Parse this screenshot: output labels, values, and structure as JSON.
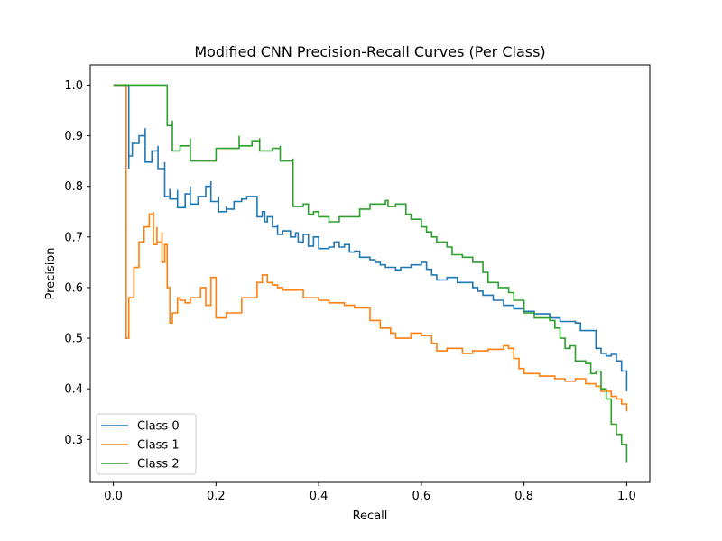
{
  "chart_data": {
    "type": "line",
    "title": "Modified CNN Precision-Recall Curves (Per Class)",
    "xlabel": "Recall",
    "ylabel": "Precision",
    "xlim": [
      -0.045,
      1.045
    ],
    "ylim": [
      0.215,
      1.04
    ],
    "xticks": [
      0.0,
      0.2,
      0.4,
      0.6,
      0.8,
      1.0
    ],
    "xtick_labels": [
      "0.0",
      "0.2",
      "0.4",
      "0.6",
      "0.8",
      "1.0"
    ],
    "yticks": [
      0.3,
      0.4,
      0.5,
      0.6,
      0.7,
      0.8,
      0.9,
      1.0
    ],
    "ytick_labels": [
      "0.3",
      "0.4",
      "0.5",
      "0.6",
      "0.7",
      "0.8",
      "0.9",
      "1.0"
    ],
    "grid": false,
    "legend_position": "bottom-left",
    "series": [
      {
        "name": "Class 0",
        "color": "#1f77b4",
        "x": [
          0.0,
          0.03,
          0.03,
          0.03,
          0.037,
          0.05,
          0.062,
          0.062,
          0.075,
          0.087,
          0.087,
          0.1,
          0.1,
          0.11,
          0.11,
          0.125,
          0.125,
          0.14,
          0.15,
          0.15,
          0.165,
          0.18,
          0.19,
          0.19,
          0.205,
          0.205,
          0.22,
          0.22,
          0.235,
          0.235,
          0.25,
          0.26,
          0.28,
          0.28,
          0.29,
          0.295,
          0.3,
          0.31,
          0.32,
          0.32,
          0.33,
          0.345,
          0.355,
          0.36,
          0.37,
          0.38,
          0.39,
          0.4,
          0.42,
          0.43,
          0.44,
          0.45,
          0.46,
          0.47,
          0.48,
          0.5,
          0.51,
          0.52,
          0.53,
          0.55,
          0.56,
          0.58,
          0.6,
          0.61,
          0.62,
          0.63,
          0.65,
          0.67,
          0.7,
          0.71,
          0.72,
          0.74,
          0.76,
          0.78,
          0.8,
          0.82,
          0.85,
          0.87,
          0.9,
          0.91,
          0.94,
          0.95,
          0.96,
          0.97,
          0.98,
          0.99,
          1.0
        ],
        "y": [
          1.0,
          1.0,
          0.835,
          0.86,
          0.885,
          0.9,
          0.915,
          0.848,
          0.87,
          0.88,
          0.835,
          0.848,
          0.78,
          0.795,
          0.775,
          0.793,
          0.758,
          0.785,
          0.8,
          0.765,
          0.78,
          0.8,
          0.81,
          0.77,
          0.78,
          0.75,
          0.76,
          0.755,
          0.762,
          0.77,
          0.775,
          0.78,
          0.765,
          0.74,
          0.75,
          0.73,
          0.74,
          0.72,
          0.725,
          0.705,
          0.712,
          0.7,
          0.708,
          0.69,
          0.705,
          0.682,
          0.7,
          0.677,
          0.68,
          0.69,
          0.68,
          0.685,
          0.67,
          0.672,
          0.66,
          0.655,
          0.65,
          0.645,
          0.64,
          0.635,
          0.64,
          0.645,
          0.65,
          0.636,
          0.625,
          0.615,
          0.62,
          0.61,
          0.6,
          0.593,
          0.585,
          0.575,
          0.565,
          0.558,
          0.553,
          0.548,
          0.54,
          0.533,
          0.53,
          0.515,
          0.48,
          0.47,
          0.465,
          0.468,
          0.455,
          0.435,
          0.395
        ]
      },
      {
        "name": "Class 1",
        "color": "#ff7f0e",
        "x": [
          0.0,
          0.025,
          0.025,
          0.03,
          0.04,
          0.05,
          0.06,
          0.07,
          0.078,
          0.078,
          0.085,
          0.085,
          0.095,
          0.095,
          0.1,
          0.105,
          0.11,
          0.115,
          0.125,
          0.13,
          0.14,
          0.15,
          0.17,
          0.18,
          0.19,
          0.2,
          0.22,
          0.25,
          0.28,
          0.29,
          0.3,
          0.31,
          0.32,
          0.33,
          0.35,
          0.37,
          0.4,
          0.42,
          0.45,
          0.47,
          0.5,
          0.52,
          0.54,
          0.55,
          0.58,
          0.6,
          0.62,
          0.63,
          0.65,
          0.68,
          0.7,
          0.73,
          0.76,
          0.77,
          0.78,
          0.79,
          0.8,
          0.83,
          0.86,
          0.88,
          0.9,
          0.92,
          0.94,
          0.95,
          0.97,
          0.98,
          0.99,
          1.0
        ],
        "y": [
          1.0,
          1.0,
          0.5,
          0.58,
          0.64,
          0.69,
          0.72,
          0.745,
          0.75,
          0.685,
          0.72,
          0.69,
          0.71,
          0.65,
          0.685,
          0.6,
          0.53,
          0.55,
          0.58,
          0.575,
          0.57,
          0.58,
          0.6,
          0.565,
          0.62,
          0.54,
          0.55,
          0.58,
          0.61,
          0.625,
          0.61,
          0.605,
          0.6,
          0.595,
          0.595,
          0.58,
          0.575,
          0.57,
          0.565,
          0.56,
          0.535,
          0.52,
          0.51,
          0.5,
          0.51,
          0.505,
          0.49,
          0.475,
          0.48,
          0.47,
          0.475,
          0.478,
          0.485,
          0.48,
          0.46,
          0.44,
          0.43,
          0.425,
          0.42,
          0.415,
          0.42,
          0.41,
          0.405,
          0.395,
          0.385,
          0.38,
          0.37,
          0.355
        ]
      },
      {
        "name": "Class 2",
        "color": "#2ca02c",
        "x": [
          0.0,
          0.105,
          0.105,
          0.115,
          0.115,
          0.13,
          0.15,
          0.15,
          0.2,
          0.245,
          0.245,
          0.27,
          0.285,
          0.285,
          0.31,
          0.325,
          0.325,
          0.35,
          0.35,
          0.37,
          0.38,
          0.39,
          0.4,
          0.42,
          0.44,
          0.48,
          0.5,
          0.53,
          0.535,
          0.55,
          0.57,
          0.58,
          0.6,
          0.61,
          0.62,
          0.63,
          0.65,
          0.66,
          0.68,
          0.7,
          0.72,
          0.73,
          0.75,
          0.77,
          0.78,
          0.8,
          0.82,
          0.85,
          0.86,
          0.87,
          0.88,
          0.89,
          0.9,
          0.92,
          0.93,
          0.94,
          0.95,
          0.96,
          0.97,
          0.98,
          0.99,
          1.0
        ],
        "y": [
          1.0,
          1.0,
          0.92,
          0.93,
          0.87,
          0.88,
          0.895,
          0.85,
          0.875,
          0.9,
          0.88,
          0.89,
          0.895,
          0.87,
          0.875,
          0.88,
          0.85,
          0.855,
          0.76,
          0.765,
          0.745,
          0.75,
          0.74,
          0.73,
          0.74,
          0.755,
          0.765,
          0.772,
          0.76,
          0.765,
          0.745,
          0.735,
          0.72,
          0.71,
          0.7,
          0.69,
          0.68,
          0.665,
          0.66,
          0.65,
          0.63,
          0.61,
          0.6,
          0.59,
          0.575,
          0.55,
          0.54,
          0.535,
          0.52,
          0.5,
          0.48,
          0.485,
          0.455,
          0.45,
          0.43,
          0.435,
          0.4,
          0.38,
          0.33,
          0.31,
          0.29,
          0.255
        ]
      }
    ]
  }
}
